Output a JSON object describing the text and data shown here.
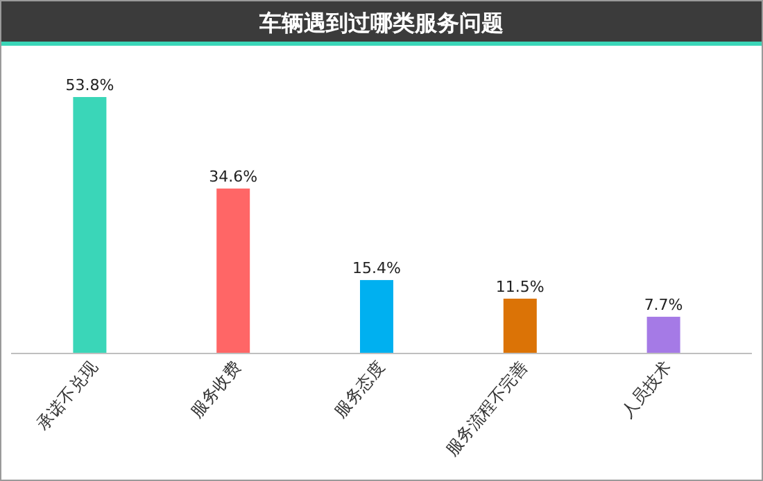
{
  "chart_data": {
    "type": "bar",
    "title": "车辆遇到过哪类服务问题",
    "categories": [
      "承诺不兑现",
      "服务收费",
      "服务态度",
      "服务流程不完善",
      "人员技术"
    ],
    "values": [
      53.8,
      34.6,
      15.4,
      11.5,
      7.7
    ],
    "colors": [
      "#3ad6b8",
      "#ff6666",
      "#00b0f0",
      "#db7306",
      "#a57ae6"
    ],
    "value_labels": [
      "53.8%",
      "34.6%",
      "15.4%",
      "11.5%",
      "7.7%"
    ]
  }
}
